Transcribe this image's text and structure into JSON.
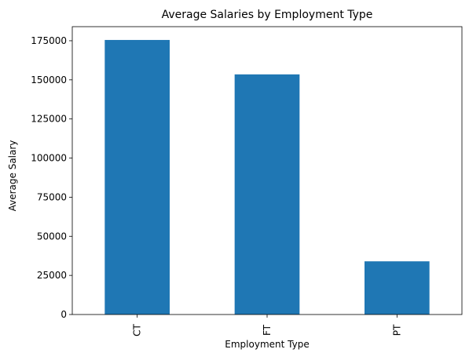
{
  "chart_data": {
    "type": "bar",
    "title": "Average Salaries by Employment Type",
    "xlabel": "Employment Type",
    "ylabel": "Average Salary",
    "categories": [
      "CT",
      "FT",
      "PT"
    ],
    "values": [
      175500,
      153500,
      34000
    ],
    "ylim": [
      0,
      184000
    ],
    "yticks": [
      0,
      25000,
      50000,
      75000,
      100000,
      125000,
      150000,
      175000
    ],
    "bar_color": "#1f77b4",
    "grid": false,
    "legend": false
  }
}
